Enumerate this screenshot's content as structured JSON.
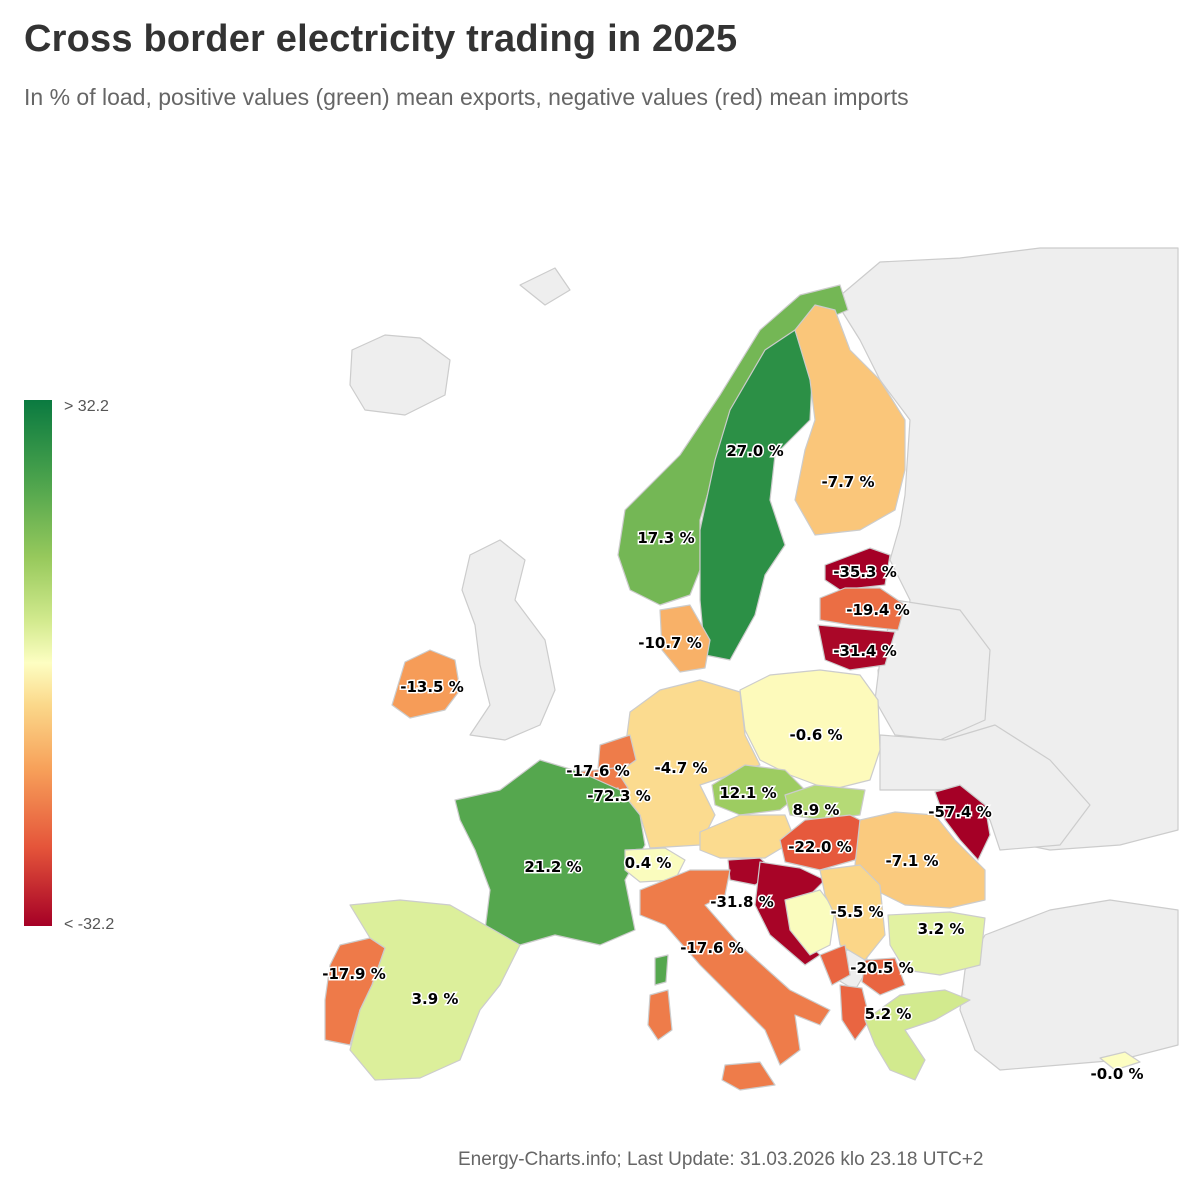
{
  "header": {
    "title": "Cross border electricity trading in 2025",
    "subtitle": "In % of load, positive values (green) mean exports, negative values (red) mean imports"
  },
  "legend": {
    "max_label": "> 32.2",
    "min_label": "< -32.2",
    "colors": [
      "#0a7a40",
      "#fdfec2",
      "#a50026"
    ]
  },
  "colors": {
    "no_data": "#eeeeee",
    "border": "#cccccc"
  },
  "countries": [
    {
      "value": -7.7,
      "label": "-7.7 %"
    },
    {
      "value": 27.0,
      "label": "27.0 %"
    },
    {
      "value": 17.3,
      "label": "17.3 %"
    },
    {
      "value": -35.3,
      "label": "-35.3 %"
    },
    {
      "value": -19.4,
      "label": "-19.4 %"
    },
    {
      "value": -31.4,
      "label": "-31.4 %"
    },
    {
      "value": -10.7,
      "label": "-10.7 %"
    },
    {
      "value": -13.5,
      "label": "-13.5 %"
    },
    {
      "value": -0.6,
      "label": "-0.6 %"
    },
    {
      "value": -4.7,
      "label": "-4.7 %"
    },
    {
      "value": -17.6,
      "label": "-17.6 %"
    },
    {
      "value": -72.3,
      "label": "-72.3 %"
    },
    {
      "value": 12.1,
      "label": "12.1 %"
    },
    {
      "value": 8.9,
      "label": "8.9 %"
    },
    {
      "value": -57.4,
      "label": "-57.4 %"
    },
    {
      "value": -22.0,
      "label": "-22.0 %"
    },
    {
      "value": -7.1,
      "label": "-7.1 %"
    },
    {
      "value": 21.2,
      "label": "21.2 %"
    },
    {
      "value": 0.4,
      "label": "0.4 %"
    },
    {
      "value": -31.8,
      "label": "-31.8 %"
    },
    {
      "value": -5.5,
      "label": "-5.5 %"
    },
    {
      "value": 3.2,
      "label": "3.2 %"
    },
    {
      "value": -17.6,
      "label": "-17.6 %"
    },
    {
      "value": -20.5,
      "label": "-20.5 %"
    },
    {
      "value": -17.9,
      "label": "-17.9 %"
    },
    {
      "value": 3.9,
      "label": "3.9 %"
    },
    {
      "value": 5.2,
      "label": "5.2 %"
    },
    {
      "value": -0.0,
      "label": "-0.0 %"
    }
  ],
  "footer": {
    "source": "Energy-Charts.info; Last Update: 31.03.2026 klo 23.18 UTC+2"
  }
}
